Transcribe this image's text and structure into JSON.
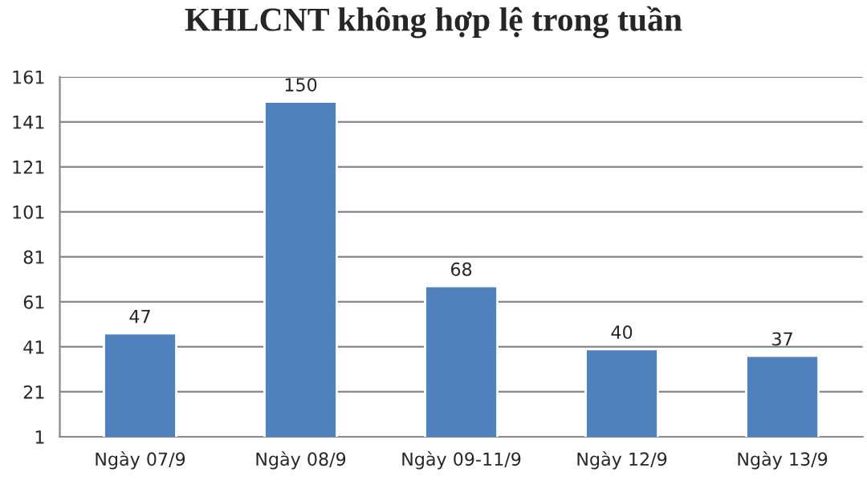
{
  "chart_data": {
    "type": "bar",
    "title": "KHLCNT không hợp lệ trong tuần",
    "categories": [
      "Ngày 07/9",
      "Ngày 08/9",
      "Ngày 09-11/9",
      "Ngày 12/9",
      "Ngày 13/9"
    ],
    "values": [
      47,
      150,
      68,
      40,
      37
    ],
    "color": "#4f81bd",
    "ylim": [
      1,
      161
    ],
    "yticks": [
      1,
      21,
      41,
      61,
      81,
      101,
      121,
      141,
      161
    ],
    "grid": "y",
    "data_labels": true
  }
}
